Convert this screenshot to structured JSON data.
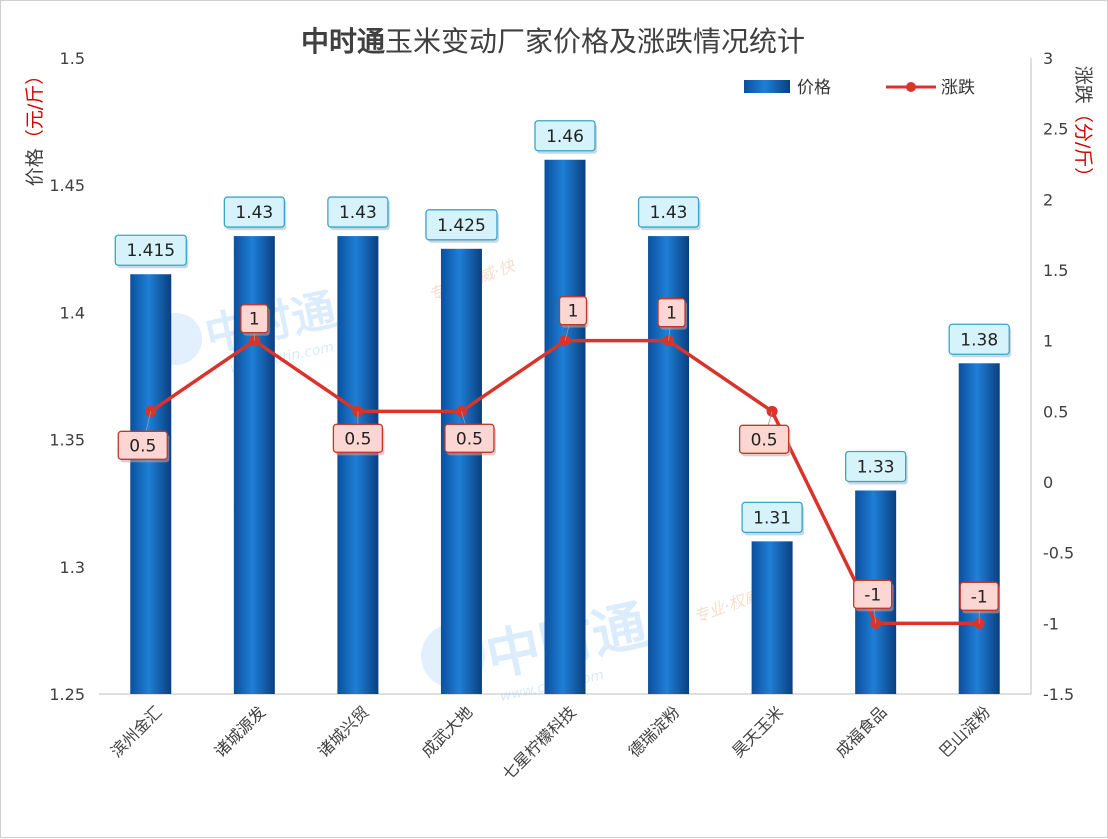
{
  "chart_data": {
    "type": "bar",
    "title_bold": "中时通",
    "title_rest": "玉米变动厂家价格及涨跌情况统计",
    "categories": [
      "滨州金汇",
      "诸城源发",
      "诸城兴贸",
      "成武大地",
      "七星柠檬科技",
      "德瑞淀粉",
      "昊天玉米",
      "成福食品",
      "巴山淀粉"
    ],
    "series": [
      {
        "name": "价格",
        "type": "bar",
        "axis": "left",
        "values": [
          1.415,
          1.43,
          1.43,
          1.425,
          1.46,
          1.43,
          1.31,
          1.33,
          1.38
        ],
        "labels": [
          "1.415",
          "1.43",
          "1.43",
          "1.425",
          "1.46",
          "1.43",
          "1.31",
          "1.33",
          "1.38"
        ]
      },
      {
        "name": "涨跌",
        "type": "line",
        "axis": "right",
        "values": [
          0.5,
          1,
          0.5,
          0.5,
          1,
          1,
          0.5,
          -1,
          -1
        ],
        "labels": [
          "0.5",
          "1",
          "0.5",
          "0.5",
          "1",
          "1",
          "0.5",
          "-1",
          "-1"
        ]
      }
    ],
    "ylabel_left_prefix": "价格",
    "ylabel_left_unit": "（元/斤）",
    "ylabel_right_prefix": "涨跌",
    "ylabel_right_unit": "（分/斤）",
    "ylim_left": [
      1.25,
      1.5
    ],
    "ylim_right": [
      -1.5,
      3
    ],
    "left_ticks": [
      "1.25",
      "1.3",
      "1.35",
      "1.4",
      "1.45",
      "1.5"
    ],
    "right_ticks": [
      "-1.5",
      "-1",
      "-0.5",
      "0",
      "0.5",
      "1",
      "1.5",
      "2",
      "2.5",
      "3"
    ],
    "legend_position": "top-right",
    "grid": false,
    "colors": {
      "bar": "#1a6fc4",
      "bar_dark": "#0d4d95",
      "line": "#d9342b",
      "price_label_bg": "#d6f3fb",
      "price_label_border": "#3aa5c8",
      "change_label_bg": "#fbd6d2",
      "change_label_border": "#c0392b"
    }
  },
  "watermark": {
    "brand": "中时通",
    "url": "www.cctin.com",
    "slogan": "专业·权威·快"
  }
}
